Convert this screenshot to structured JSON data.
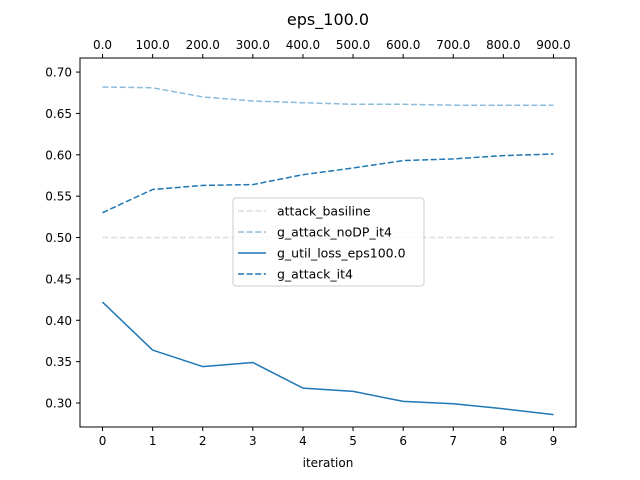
{
  "chart_data": {
    "type": "line",
    "title": "eps_100.0",
    "xlabel": "iteration",
    "ylabel": "",
    "x": [
      0,
      1,
      2,
      3,
      4,
      5,
      6,
      7,
      8,
      9
    ],
    "xlim": [
      -0.45,
      9.45
    ],
    "ylim": [
      0.271,
      0.717
    ],
    "x_ticks": [
      "0",
      "1",
      "2",
      "3",
      "4",
      "5",
      "6",
      "7",
      "8",
      "9"
    ],
    "top_x_ticks": [
      "0.0",
      "100.0",
      "200.0",
      "300.0",
      "400.0",
      "500.0",
      "600.0",
      "700.0",
      "800.0",
      "900.0"
    ],
    "y_ticks": [
      0.3,
      0.35,
      0.4,
      0.45,
      0.5,
      0.55,
      0.6,
      0.65,
      0.7
    ],
    "y_tick_labels": [
      "0.30",
      "0.35",
      "0.40",
      "0.45",
      "0.50",
      "0.55",
      "0.60",
      "0.65",
      "0.70"
    ],
    "grid": false,
    "legend_position": "center",
    "series": [
      {
        "name": "attack_basiline",
        "color": "#d9dde3",
        "style": "dashed",
        "values": [
          0.5,
          0.5,
          0.5,
          0.5,
          0.5,
          0.5,
          0.5,
          0.5,
          0.5,
          0.5
        ]
      },
      {
        "name": "g_attack_noDP_it4",
        "color": "#8ebbd9",
        "style": "dashed",
        "values": [
          0.682,
          0.681,
          0.67,
          0.665,
          0.663,
          0.661,
          0.661,
          0.66,
          0.66,
          0.66
        ]
      },
      {
        "name": "g_util_loss_eps100.0",
        "color": "#1f77b4",
        "style": "solid",
        "values": [
          0.422,
          0.364,
          0.344,
          0.349,
          0.318,
          0.314,
          0.302,
          0.299,
          0.293,
          0.286
        ]
      },
      {
        "name": "g_attack_it4",
        "color": "#1f77b4",
        "style": "dashed",
        "values": [
          0.53,
          0.558,
          0.563,
          0.564,
          0.576,
          0.584,
          0.593,
          0.595,
          0.599,
          0.601
        ]
      }
    ]
  }
}
